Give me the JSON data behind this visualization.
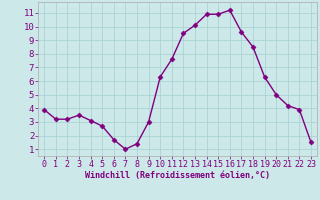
{
  "x": [
    0,
    1,
    2,
    3,
    4,
    5,
    6,
    7,
    8,
    9,
    10,
    11,
    12,
    13,
    14,
    15,
    16,
    17,
    18,
    19,
    20,
    21,
    22,
    23
  ],
  "y": [
    3.9,
    3.2,
    3.2,
    3.5,
    3.1,
    2.7,
    1.7,
    1.0,
    1.4,
    3.0,
    6.3,
    7.6,
    9.5,
    10.1,
    10.9,
    10.9,
    11.2,
    9.6,
    8.5,
    6.3,
    5.0,
    4.2,
    3.9,
    1.5
  ],
  "line_color": "#800080",
  "marker": "D",
  "marker_size": 2.5,
  "linewidth": 1.0,
  "bg_color": "#cce8e8",
  "xlabel": "Windchill (Refroidissement éolien,°C)",
  "xlabel_color": "#800080",
  "ylabel_ticks": [
    1,
    2,
    3,
    4,
    5,
    6,
    7,
    8,
    9,
    10,
    11
  ],
  "xticks": [
    0,
    1,
    2,
    3,
    4,
    5,
    6,
    7,
    8,
    9,
    10,
    11,
    12,
    13,
    14,
    15,
    16,
    17,
    18,
    19,
    20,
    21,
    22,
    23
  ],
  "xlim": [
    -0.5,
    23.5
  ],
  "ylim": [
    0.5,
    11.8
  ],
  "grid_color": "#aad4d4",
  "spine_color": "#aaaaaa",
  "tick_label_color": "#800080",
  "xlabel_fontsize": 6.0,
  "tick_fontsize": 6.0,
  "ytick_fontsize": 6.5
}
